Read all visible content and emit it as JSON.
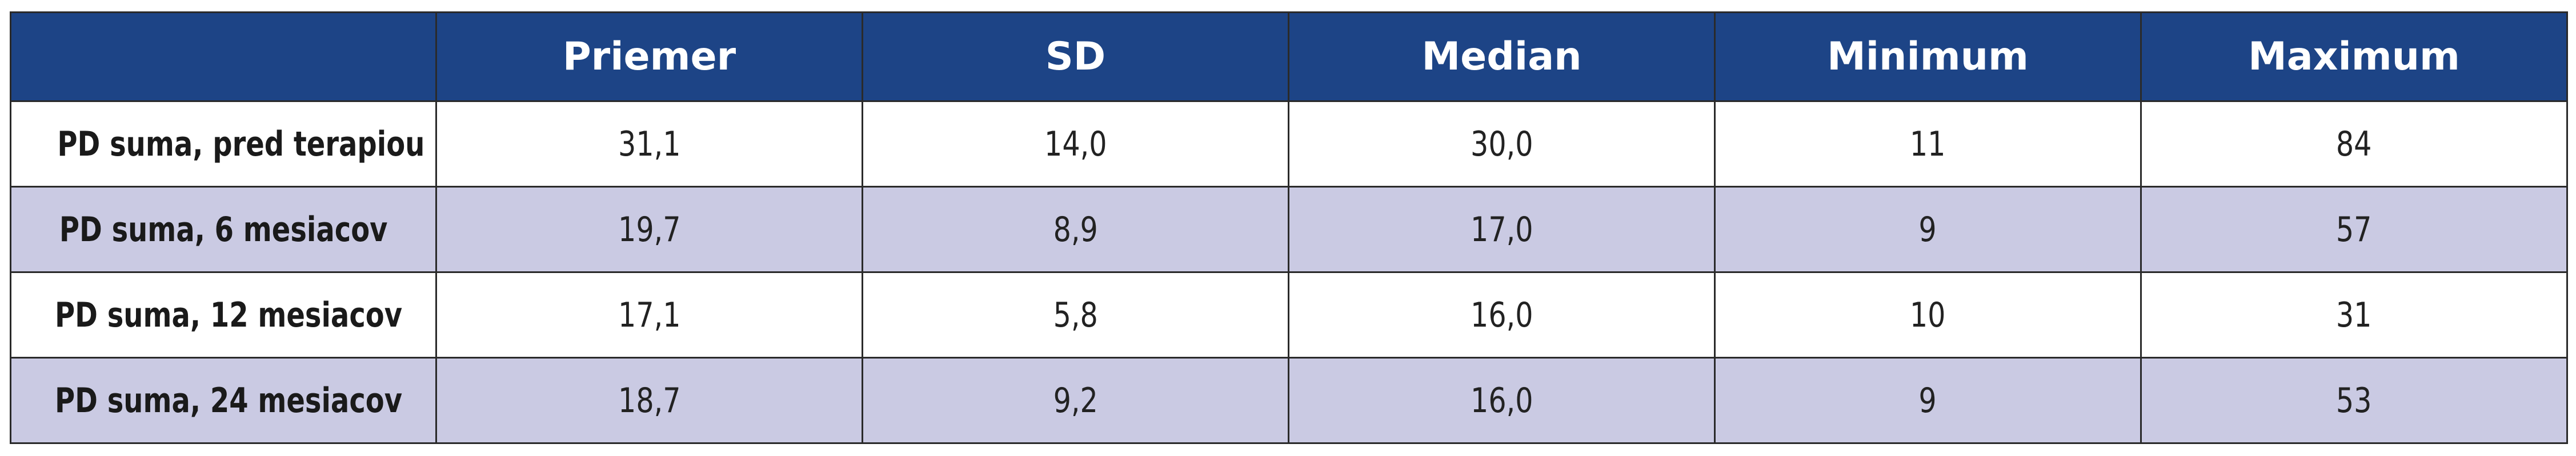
{
  "table": {
    "columns": [
      "",
      "Priemer",
      "SD",
      "Median",
      "Minimum",
      "Maximum"
    ],
    "rows": [
      {
        "label": "PD suma, pred terapiou",
        "values": [
          "31,1",
          "14,0",
          "30,0",
          "11",
          "84"
        ]
      },
      {
        "label": "PD suma, 6 mesiacov",
        "values": [
          "19,7",
          "8,9",
          "17,0",
          "9",
          "57"
        ]
      },
      {
        "label": "PD suma, 12 mesiacov",
        "values": [
          "17,1",
          "5,8",
          "16,0",
          "10",
          "31"
        ]
      },
      {
        "label": "PD suma, 24 mesiacov",
        "values": [
          "18,7",
          "9,2",
          "16,0",
          "9",
          "53"
        ]
      }
    ]
  },
  "colors": {
    "header_bg": "#1d4486",
    "header_text": "#ffffff",
    "row_alt_bg": "#cacae3",
    "row_bg": "#ffffff",
    "border": "#2a2a2a"
  }
}
